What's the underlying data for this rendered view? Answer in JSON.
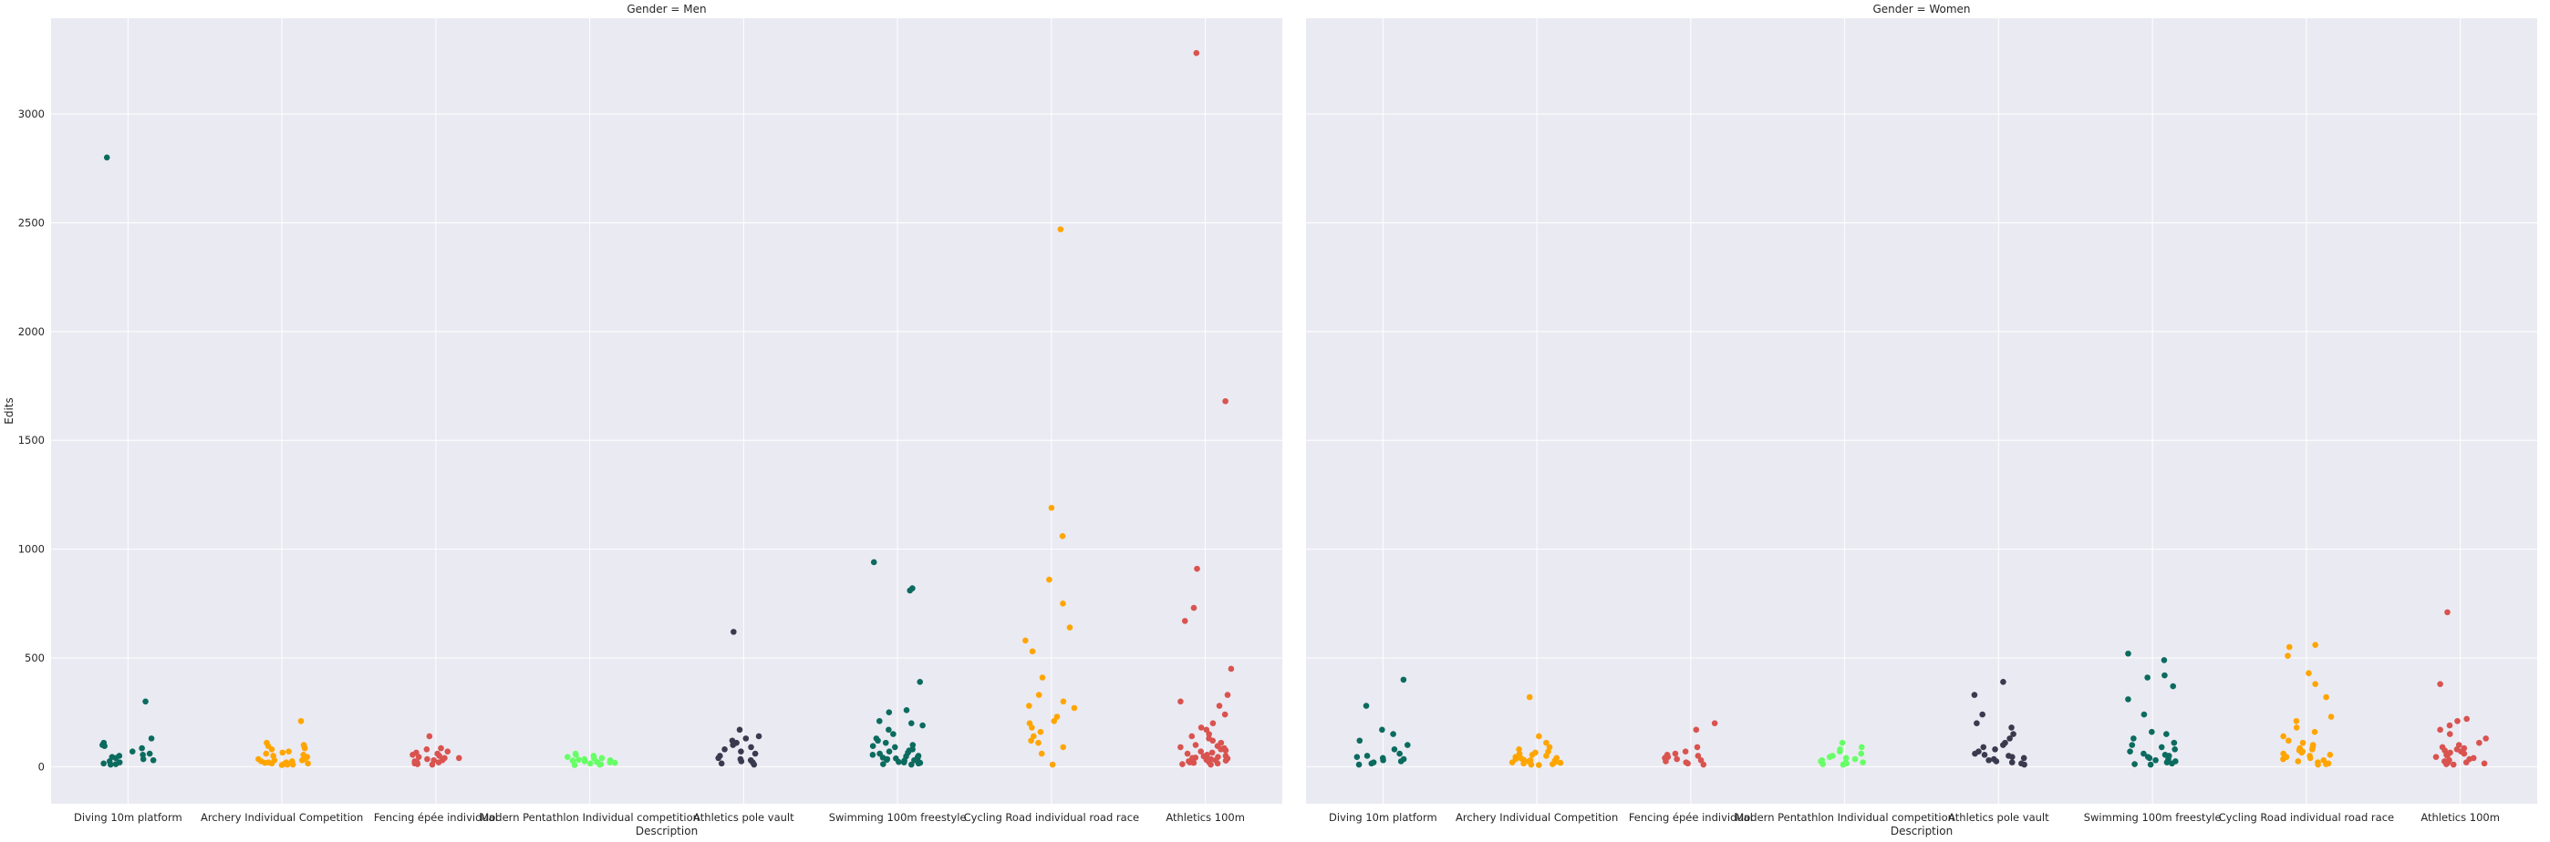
{
  "chart_data": {
    "type": "scatter",
    "kind": "strip plot (categorical scatter with jitter)",
    "ylabel": "Edits",
    "xlabel": "Description",
    "ylim": [
      -170,
      3440
    ],
    "yticks": [
      0,
      500,
      1000,
      1500,
      2000,
      2500,
      3000
    ],
    "grid": true,
    "legend": "none",
    "categories": [
      "Diving 10m platform",
      "Archery Individual Competition",
      "Fencing épée individual",
      "Modern Pentathlon Individual competition",
      "Athletics pole vault",
      "Swimming 100m freestyle",
      "Cycling Road individual road race",
      "Athletics 100m"
    ],
    "category_colors": [
      "#0b6b5e",
      "#ffa500",
      "#d9534f",
      "#66ff66",
      "#3a3a4f",
      "#0b6b5e",
      "#ffa500",
      "#d9534f"
    ],
    "facets": [
      {
        "title": "Gender = Men",
        "series": [
          {
            "category": "Diving 10m platform",
            "values": [
              2800,
              300,
              130,
              110,
              100,
              95,
              85,
              70,
              60,
              55,
              50,
              45,
              40,
              35,
              30,
              25,
              20,
              15,
              12,
              10
            ]
          },
          {
            "category": "Archery Individual Competition",
            "values": [
              210,
              110,
              100,
              95,
              90,
              85,
              80,
              70,
              65,
              60,
              55,
              50,
              45,
              40,
              40,
              35,
              35,
              30,
              30,
              25,
              25,
              20,
              20,
              18,
              15,
              15,
              12,
              10,
              10,
              8
            ]
          },
          {
            "category": "Fencing épée individual",
            "values": [
              140,
              85,
              80,
              70,
              65,
              60,
              55,
              50,
              45,
              40,
              40,
              35,
              30,
              30,
              25,
              20,
              20,
              15,
              12,
              10
            ]
          },
          {
            "category": "Modern Pentathlon Individual competition",
            "values": [
              60,
              55,
              50,
              45,
              40,
              38,
              35,
              32,
              30,
              28,
              25,
              22,
              20,
              18,
              15,
              12,
              10,
              8
            ]
          },
          {
            "category": "Athletics pole vault",
            "values": [
              620,
              170,
              140,
              130,
              120,
              110,
              100,
              90,
              80,
              70,
              60,
              50,
              40,
              35,
              30,
              25,
              20,
              15,
              10
            ]
          },
          {
            "category": "Swimming 100m freestyle",
            "values": [
              940,
              820,
              810,
              390,
              260,
              250,
              210,
              200,
              190,
              170,
              150,
              130,
              120,
              110,
              100,
              95,
              90,
              80,
              75,
              70,
              65,
              60,
              55,
              50,
              48,
              45,
              42,
              40,
              38,
              35,
              32,
              30,
              28,
              25,
              22,
              20,
              18,
              15,
              12,
              10
            ]
          },
          {
            "category": "Cycling Road individual road race",
            "values": [
              2470,
              1190,
              1060,
              860,
              750,
              640,
              580,
              530,
              410,
              330,
              300,
              280,
              270,
              230,
              210,
              200,
              180,
              160,
              140,
              120,
              110,
              90,
              60,
              10
            ]
          },
          {
            "category": "Athletics 100m",
            "values": [
              3280,
              1680,
              910,
              730,
              670,
              450,
              330,
              300,
              280,
              240,
              200,
              180,
              170,
              150,
              140,
              130,
              120,
              110,
              100,
              95,
              90,
              85,
              80,
              75,
              70,
              65,
              60,
              55,
              50,
              48,
              45,
              42,
              40,
              38,
              35,
              32,
              30,
              28,
              25,
              22,
              20,
              18,
              15,
              12,
              10
            ]
          }
        ]
      },
      {
        "title": "Gender = Women",
        "series": [
          {
            "category": "Diving 10m platform",
            "values": [
              400,
              280,
              170,
              150,
              120,
              100,
              80,
              60,
              50,
              45,
              40,
              35,
              30,
              25,
              20,
              15,
              10
            ]
          },
          {
            "category": "Archery Individual Competition",
            "values": [
              320,
              140,
              110,
              90,
              80,
              70,
              65,
              60,
              55,
              50,
              45,
              40,
              38,
              35,
              32,
              30,
              28,
              25,
              22,
              20,
              18,
              15,
              12,
              10,
              8
            ]
          },
          {
            "category": "Fencing épée individual",
            "values": [
              200,
              170,
              90,
              70,
              60,
              55,
              50,
              45,
              40,
              35,
              30,
              25,
              20,
              15,
              10
            ]
          },
          {
            "category": "Modern Pentathlon Individual competition",
            "values": [
              110,
              90,
              80,
              70,
              60,
              50,
              45,
              40,
              35,
              30,
              25,
              20,
              18,
              15,
              12,
              10
            ]
          },
          {
            "category": "Athletics pole vault",
            "values": [
              390,
              330,
              240,
              200,
              180,
              150,
              130,
              110,
              100,
              90,
              80,
              70,
              60,
              55,
              50,
              45,
              40,
              35,
              30,
              25,
              20,
              15,
              10
            ]
          },
          {
            "category": "Swimming 100m freestyle",
            "values": [
              520,
              490,
              420,
              410,
              370,
              310,
              240,
              160,
              150,
              130,
              110,
              100,
              90,
              80,
              70,
              60,
              55,
              50,
              45,
              40,
              35,
              30,
              25,
              20,
              15,
              12,
              10
            ]
          },
          {
            "category": "Cycling Road individual road race",
            "values": [
              560,
              550,
              510,
              430,
              380,
              320,
              230,
              210,
              180,
              160,
              140,
              120,
              110,
              100,
              90,
              85,
              80,
              75,
              70,
              65,
              60,
              55,
              50,
              45,
              40,
              35,
              30,
              25,
              20,
              15,
              12,
              10
            ]
          },
          {
            "category": "Athletics 100m",
            "values": [
              710,
              380,
              220,
              210,
              190,
              170,
              150,
              130,
              110,
              100,
              90,
              85,
              80,
              75,
              70,
              65,
              60,
              55,
              50,
              45,
              40,
              35,
              30,
              25,
              20,
              18,
              15,
              12,
              10
            ]
          }
        ]
      }
    ]
  },
  "colors": {
    "figure_background": "#ffffff",
    "plot_background": "#eaeaf2",
    "grid": "#ffffff",
    "text": "#262626"
  }
}
